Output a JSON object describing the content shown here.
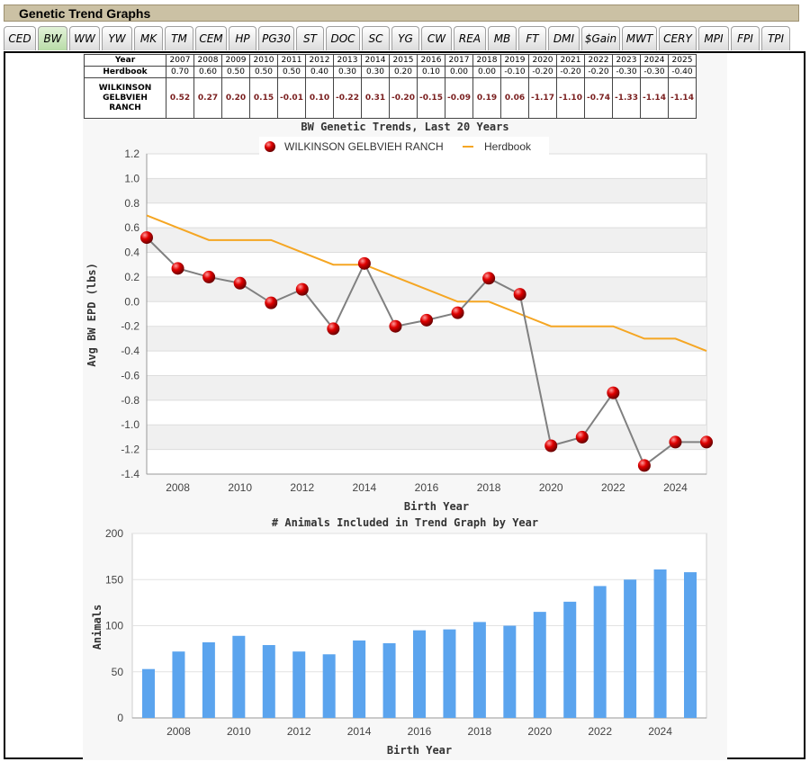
{
  "title": "Genetic Trend Graphs",
  "tabs": [
    "CED",
    "BW",
    "WW",
    "YW",
    "MK",
    "TM",
    "CEM",
    "HP",
    "PG30",
    "ST",
    "DOC",
    "SC",
    "YG",
    "CW",
    "REA",
    "MB",
    "FT",
    "DMI",
    "$Gain",
    "MWT",
    "CERY",
    "MPI",
    "FPI",
    "TPI"
  ],
  "active_tab": "BW",
  "table": {
    "year_label": "Year",
    "herdbook_label": "Herdbook",
    "ranch_label_lines": [
      "WILKINSON",
      "GELBVIEH",
      "RANCH"
    ],
    "years": [
      "2007",
      "2008",
      "2009",
      "2010",
      "2011",
      "2012",
      "2013",
      "2014",
      "2015",
      "2016",
      "2017",
      "2018",
      "2019",
      "2020",
      "2021",
      "2022",
      "2023",
      "2024",
      "2025"
    ],
    "herdbook": [
      "0.70",
      "0.60",
      "0.50",
      "0.50",
      "0.50",
      "0.40",
      "0.30",
      "0.30",
      "0.20",
      "0.10",
      "0.00",
      "0.00",
      "-0.10",
      "-0.20",
      "-0.20",
      "-0.20",
      "-0.30",
      "-0.30",
      "-0.40"
    ],
    "ranch": [
      "0.52",
      "0.27",
      "0.20",
      "0.15",
      "-0.01",
      "0.10",
      "-0.22",
      "0.31",
      "-0.20",
      "-0.15",
      "-0.09",
      "0.19",
      "0.06",
      "-1.17",
      "-1.10",
      "-0.74",
      "-1.33",
      "-1.14",
      "-1.14"
    ]
  },
  "chart_data": [
    {
      "type": "line",
      "title": "BW Genetic Trends, Last 20 Years",
      "xlabel": "Birth Year",
      "ylabel": "Avg BW EPD (lbs)",
      "x": [
        2007,
        2008,
        2009,
        2010,
        2011,
        2012,
        2013,
        2014,
        2015,
        2016,
        2017,
        2018,
        2019,
        2020,
        2021,
        2022,
        2023,
        2024,
        2025
      ],
      "xlim": [
        2007,
        2025
      ],
      "xticks": [
        "2008",
        "2010",
        "2012",
        "2014",
        "2016",
        "2018",
        "2020",
        "2022",
        "2024"
      ],
      "ylim": [
        -1.4,
        1.2
      ],
      "yticks": [
        "1.2",
        "1.0",
        "0.8",
        "0.6",
        "0.4",
        "0.2",
        "0.0",
        "-0.2",
        "-0.4",
        "-0.6",
        "-0.8",
        "-1.0",
        "-1.2",
        "-1.4"
      ],
      "legend_position": "top",
      "series": [
        {
          "name": "WILKINSON GELBVIEH RANCH",
          "color": "#cc0000",
          "line_color": "#808080",
          "marker": "sphere",
          "values": [
            0.52,
            0.27,
            0.2,
            0.15,
            -0.01,
            0.1,
            -0.22,
            0.31,
            -0.2,
            -0.15,
            -0.09,
            0.19,
            0.06,
            -1.17,
            -1.1,
            -0.74,
            -1.33,
            -1.14,
            -1.14
          ]
        },
        {
          "name": "Herdbook",
          "color": "#f5a623",
          "marker": "none",
          "values": [
            0.7,
            0.6,
            0.5,
            0.5,
            0.5,
            0.4,
            0.3,
            0.3,
            0.2,
            0.1,
            0.0,
            0.0,
            -0.1,
            -0.2,
            -0.2,
            -0.2,
            -0.3,
            -0.3,
            -0.4
          ]
        }
      ],
      "grid": "alternating horizontal bands"
    },
    {
      "type": "bar",
      "title": "# Animals Included in Trend Graph by Year",
      "xlabel": "Birth Year",
      "ylabel": "Animals",
      "x": [
        2007,
        2008,
        2009,
        2010,
        2011,
        2012,
        2013,
        2014,
        2015,
        2016,
        2017,
        2018,
        2019,
        2020,
        2021,
        2022,
        2023,
        2024,
        2025
      ],
      "xticks": [
        "2008",
        "2010",
        "2012",
        "2014",
        "2016",
        "2018",
        "2020",
        "2022",
        "2024"
      ],
      "ylim": [
        0,
        200
      ],
      "yticks": [
        "200",
        "150",
        "100",
        "50",
        "0"
      ],
      "color": "#5ba4ee",
      "values": [
        53,
        72,
        82,
        89,
        79,
        72,
        69,
        84,
        81,
        95,
        96,
        104,
        100,
        115,
        126,
        143,
        150,
        161,
        158
      ]
    }
  ]
}
